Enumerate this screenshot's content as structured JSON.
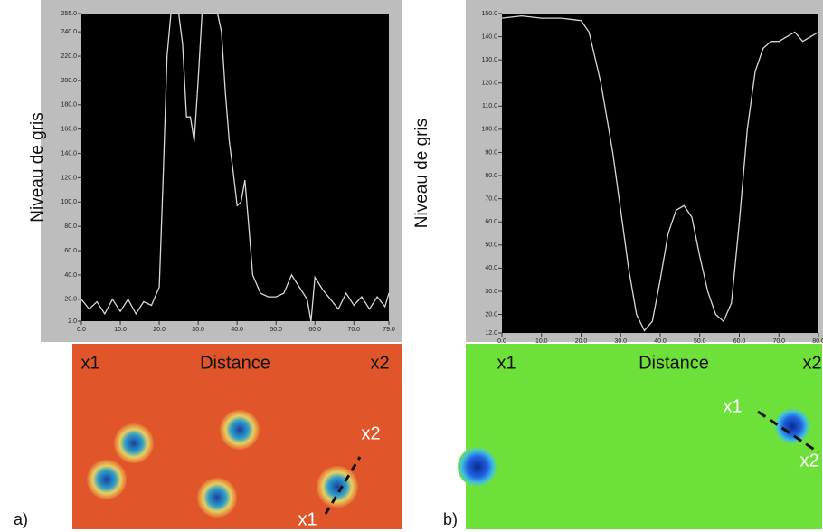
{
  "chart_data": [
    {
      "type": "line",
      "ylabel": "Niveau de gris",
      "xlabel": "Distance",
      "panel_label": "a)",
      "annotations": [
        "x1",
        "x2",
        "x2",
        "x1"
      ],
      "color": "#d8d8d8",
      "xlim": [
        0,
        79
      ],
      "ylim": [
        2,
        255
      ],
      "xticks": [
        {
          "value": 0,
          "label": "0.0"
        },
        {
          "value": 10,
          "label": "10.0"
        },
        {
          "value": 20,
          "label": "20.0"
        },
        {
          "value": 30,
          "label": "30.0"
        },
        {
          "value": 40,
          "label": "40.0"
        },
        {
          "value": 50,
          "label": "50.0"
        },
        {
          "value": 60,
          "label": "60.0"
        },
        {
          "value": 70,
          "label": "70.0"
        },
        {
          "value": 79,
          "label": "79.0"
        }
      ],
      "yticks": [
        {
          "value": 2,
          "label": "2.0"
        },
        {
          "value": 20,
          "label": "20.0"
        },
        {
          "value": 40,
          "label": "40.0"
        },
        {
          "value": 60,
          "label": "60.0"
        },
        {
          "value": 80,
          "label": "80.0"
        },
        {
          "value": 100,
          "label": "100.0"
        },
        {
          "value": 120,
          "label": "120.0"
        },
        {
          "value": 140,
          "label": "140.0"
        },
        {
          "value": 160,
          "label": "160.0"
        },
        {
          "value": 180,
          "label": "180.0"
        },
        {
          "value": 200,
          "label": "200.0"
        },
        {
          "value": 220,
          "label": "220.0"
        },
        {
          "value": 240,
          "label": "240.0"
        },
        {
          "value": 255,
          "label": "255.0"
        }
      ],
      "x": [
        0,
        2,
        4,
        6,
        8,
        10,
        12,
        14,
        16,
        18,
        20,
        21,
        22,
        23,
        25,
        26,
        27,
        28,
        29,
        30,
        31,
        35,
        36,
        37,
        38,
        39,
        40,
        41,
        42,
        43,
        44,
        46,
        48,
        50,
        52,
        54,
        56,
        58,
        59,
        60,
        62,
        64,
        66,
        68,
        70,
        72,
        74,
        76,
        78,
        79
      ],
      "values": [
        20,
        12,
        18,
        8,
        20,
        10,
        20,
        8,
        18,
        15,
        30,
        120,
        220,
        255,
        255,
        230,
        170,
        170,
        150,
        200,
        255,
        255,
        240,
        190,
        150,
        125,
        97,
        100,
        118,
        80,
        40,
        25,
        22,
        22,
        25,
        40,
        30,
        20,
        2,
        38,
        28,
        20,
        12,
        25,
        15,
        22,
        12,
        22,
        14,
        25
      ]
    },
    {
      "type": "line",
      "ylabel": "Niveau de gris",
      "xlabel": "Distance",
      "panel_label": "b)",
      "annotations": [
        "x1",
        "x2",
        "x1",
        "x2"
      ],
      "color": "#d8d8d8",
      "xlim": [
        0,
        80
      ],
      "ylim": [
        12,
        150
      ],
      "xticks": [
        {
          "value": 0,
          "label": "0.0"
        },
        {
          "value": 10,
          "label": "10.0"
        },
        {
          "value": 20,
          "label": "20.0"
        },
        {
          "value": 30,
          "label": "30.0"
        },
        {
          "value": 40,
          "label": "40.0"
        },
        {
          "value": 50,
          "label": "50.0"
        },
        {
          "value": 60,
          "label": "60.0"
        },
        {
          "value": 70,
          "label": "70.0"
        },
        {
          "value": 80,
          "label": "80.0"
        }
      ],
      "yticks": [
        {
          "value": 12,
          "label": "12.0"
        },
        {
          "value": 20,
          "label": "20.0"
        },
        {
          "value": 30,
          "label": "30.0"
        },
        {
          "value": 40,
          "label": "40.0"
        },
        {
          "value": 50,
          "label": "50.0"
        },
        {
          "value": 60,
          "label": "60.0"
        },
        {
          "value": 70,
          "label": "70.0"
        },
        {
          "value": 80,
          "label": "80.0"
        },
        {
          "value": 90,
          "label": "90.0"
        },
        {
          "value": 100,
          "label": "100.0"
        },
        {
          "value": 110,
          "label": "110.0"
        },
        {
          "value": 120,
          "label": "120.0"
        },
        {
          "value": 130,
          "label": "130.0"
        },
        {
          "value": 140,
          "label": "140.0"
        },
        {
          "value": 150,
          "label": "150.0"
        }
      ],
      "x": [
        0,
        5,
        10,
        15,
        20,
        22,
        25,
        28,
        30,
        32,
        34,
        36,
        38,
        40,
        42,
        44,
        46,
        48,
        50,
        52,
        54,
        56,
        58,
        60,
        62,
        64,
        66,
        68,
        70,
        72,
        74,
        76,
        78,
        80
      ],
      "values": [
        148,
        149,
        148,
        148,
        147,
        142,
        120,
        90,
        65,
        40,
        20,
        13,
        17,
        35,
        55,
        65,
        67,
        62,
        45,
        30,
        20,
        17,
        25,
        60,
        100,
        125,
        135,
        138,
        138,
        140,
        142,
        138,
        140,
        142
      ]
    }
  ]
}
